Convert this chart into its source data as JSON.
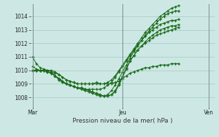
{
  "title": "",
  "xlabel": "Pression niveau de la mer( hPa )",
  "ylabel": "",
  "bg_color": "#cde8e4",
  "grid_color": "#a0c8be",
  "line_color": "#1a6b1a",
  "marker_color": "#1a6b1a",
  "yticks": [
    1008,
    1009,
    1010,
    1011,
    1012,
    1013,
    1014
  ],
  "ylim": [
    1007.3,
    1014.9
  ],
  "xtick_labels": [
    "Mar",
    "Jeu",
    "Ven"
  ],
  "xtick_positions": [
    0,
    24,
    47
  ],
  "xlim": [
    -0.5,
    48.5
  ],
  "series": [
    [
      1011.0,
      1010.5,
      1010.2,
      1010.1,
      1010.0,
      1010.0,
      1009.9,
      1009.7,
      1009.5,
      1009.3,
      1009.2,
      1009.1,
      1009.0,
      1009.0,
      1009.0,
      1009.0,
      1009.0,
      1009.1,
      1009.0,
      1009.0,
      1009.1,
      1009.3,
      1009.6,
      1010.0,
      1010.4,
      1010.8,
      1011.2,
      1011.6,
      1012.0,
      1012.4,
      1012.8,
      1013.1,
      1013.4,
      1013.7,
      1014.0,
      1014.2,
      1014.4,
      1014.6,
      1014.7,
      1014.8
    ],
    [
      1010.3,
      1010.1,
      1010.0,
      1010.0,
      1009.9,
      1009.8,
      1009.6,
      1009.4,
      1009.2,
      1009.0,
      1008.9,
      1008.8,
      1008.7,
      1008.6,
      1008.5,
      1008.4,
      1008.3,
      1008.2,
      1008.1,
      1008.1,
      1008.2,
      1008.5,
      1008.9,
      1009.4,
      1009.9,
      1010.4,
      1010.9,
      1011.4,
      1011.8,
      1012.2,
      1012.6,
      1012.9,
      1013.2,
      1013.5,
      1013.8,
      1014.0,
      1014.2,
      1014.3,
      1014.4,
      1014.4
    ],
    [
      1010.0,
      1010.0,
      1010.0,
      1010.0,
      1009.9,
      1009.8,
      1009.6,
      1009.4,
      1009.2,
      1009.0,
      1008.9,
      1008.8,
      1008.7,
      1008.7,
      1008.6,
      1008.6,
      1008.6,
      1008.6,
      1008.6,
      1008.7,
      1008.9,
      1009.1,
      1009.5,
      1009.9,
      1010.3,
      1010.7,
      1011.1,
      1011.5,
      1011.9,
      1012.2,
      1012.5,
      1012.8,
      1013.0,
      1013.2,
      1013.4,
      1013.5,
      1013.6,
      1013.7,
      1013.7,
      1013.8
    ],
    [
      1010.0,
      1010.0,
      1010.0,
      1010.0,
      1009.9,
      1009.8,
      1009.6,
      1009.4,
      1009.2,
      1009.0,
      1008.9,
      1008.8,
      1008.7,
      1008.7,
      1008.6,
      1008.5,
      1008.4,
      1008.3,
      1008.2,
      1008.1,
      1008.1,
      1008.2,
      1008.5,
      1009.0,
      1009.6,
      1010.2,
      1010.7,
      1011.1,
      1011.5,
      1011.8,
      1012.1,
      1012.4,
      1012.6,
      1012.8,
      1013.0,
      1013.1,
      1013.2,
      1013.3,
      1013.3,
      1013.4
    ],
    [
      1010.0,
      1010.0,
      1010.0,
      1010.0,
      1009.9,
      1009.8,
      1009.6,
      1009.3,
      1009.1,
      1009.0,
      1008.9,
      1008.8,
      1008.7,
      1008.7,
      1008.6,
      1008.5,
      1008.4,
      1008.3,
      1008.2,
      1008.1,
      1008.1,
      1008.2,
      1008.4,
      1008.9,
      1009.5,
      1010.1,
      1010.7,
      1011.1,
      1011.5,
      1011.8,
      1012.0,
      1012.2,
      1012.4,
      1012.6,
      1012.7,
      1012.8,
      1012.9,
      1013.0,
      1013.1,
      1013.2
    ],
    [
      1010.0,
      1010.0,
      1010.0,
      1010.0,
      1010.0,
      1009.9,
      1009.8,
      1009.7,
      1009.5,
      1009.3,
      1009.2,
      1009.1,
      1009.0,
      1009.0,
      1009.0,
      1009.0,
      1009.0,
      1009.0,
      1009.0,
      1009.0,
      1009.0,
      1009.0,
      1009.1,
      1009.2,
      1009.4,
      1009.6,
      1009.8,
      1009.9,
      1010.0,
      1010.1,
      1010.2,
      1010.2,
      1010.3,
      1010.3,
      1010.4,
      1010.4,
      1010.4,
      1010.5,
      1010.5,
      1010.5
    ]
  ],
  "vline_positions": [
    0,
    24,
    47
  ],
  "vline_color": "#778888"
}
